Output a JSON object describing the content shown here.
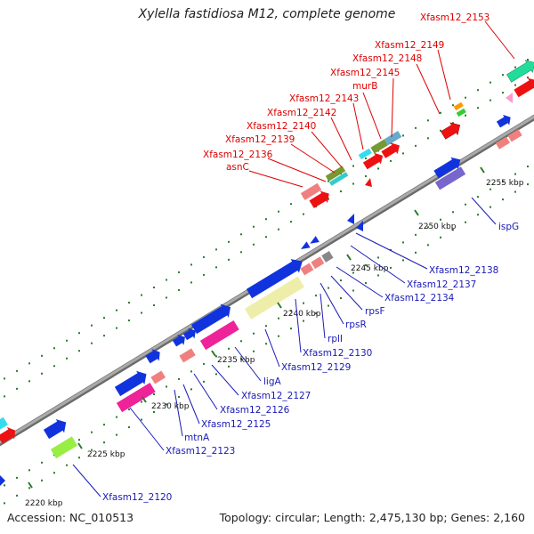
{
  "title": "Xylella fastidiosa M12, complete genome",
  "footer": {
    "accession": "Accession: NC_010513",
    "topology": "Topology: circular; Length: 2,475,130 bp; Genes: 2,160"
  },
  "colors": {
    "upper_label": "#dd0000",
    "lower_label": "#1a1ab8",
    "backbone": "#9a9a9a",
    "tick": "#2a7a2a"
  },
  "kbp_ticks": [
    "2220 kbp",
    "2225 kbp",
    "2230 kbp",
    "2235 kbp",
    "2240 kbp",
    "2245 kbp",
    "2250 kbp",
    "2255 kbp"
  ],
  "upper_labels": [
    {
      "text": "Xfasm12_2153"
    },
    {
      "text": "Xfasm12_2149"
    },
    {
      "text": "Xfasm12_2148"
    },
    {
      "text": "Xfasm12_2145"
    },
    {
      "text": "murB"
    },
    {
      "text": "Xfasm12_2143"
    },
    {
      "text": "Xfasm12_2142"
    },
    {
      "text": "Xfasm12_2140"
    },
    {
      "text": "Xfasm12_2139"
    },
    {
      "text": "Xfasm12_2136"
    },
    {
      "text": "asnC"
    }
  ],
  "lower_labels": [
    {
      "text": "ispG"
    },
    {
      "text": "Xfasm12_2138"
    },
    {
      "text": "Xfasm12_2137"
    },
    {
      "text": "Xfasm12_2134"
    },
    {
      "text": "rpsF"
    },
    {
      "text": "rpsR"
    },
    {
      "text": "rplI"
    },
    {
      "text": "Xfasm12_2130"
    },
    {
      "text": "Xfasm12_2129"
    },
    {
      "text": "ligA"
    },
    {
      "text": "Xfasm12_2127"
    },
    {
      "text": "Xfasm12_2126"
    },
    {
      "text": "Xfasm12_2125"
    },
    {
      "text": "mtnA"
    },
    {
      "text": "Xfasm12_2123"
    },
    {
      "text": "Xfasm12_2120"
    }
  ]
}
